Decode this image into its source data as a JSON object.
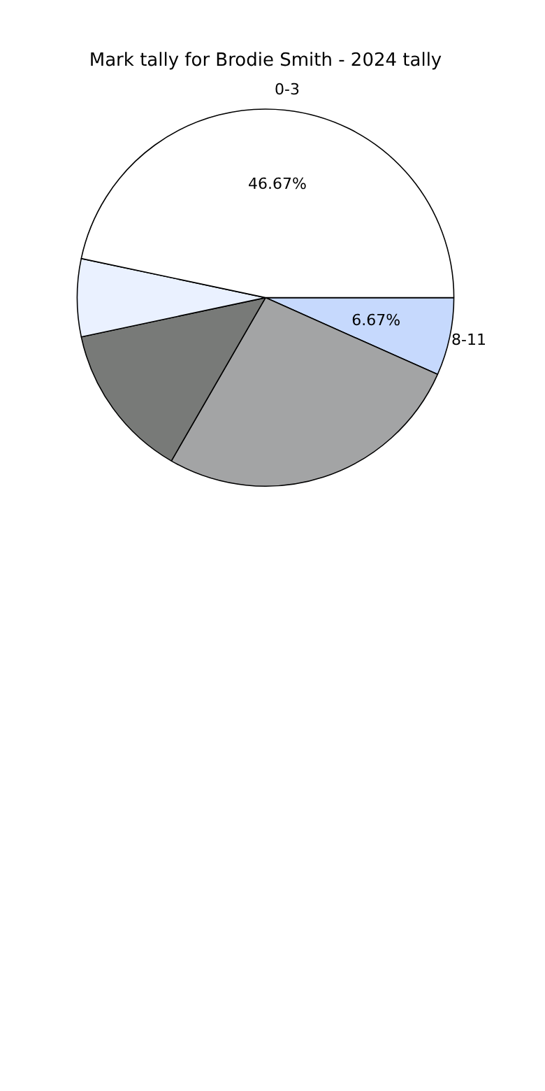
{
  "chart_data": {
    "type": "pie",
    "title": "Mark tally for Brodie Smith - 2024 tally",
    "categories": [
      "8-11",
      null,
      null,
      null,
      "0-3"
    ],
    "values": [
      6.67,
      26.66,
      13.33,
      6.67,
      46.67
    ],
    "colors": [
      "#c6d9fd",
      "#a3a4a5",
      "#787a78",
      "#eaf1ff",
      "#ffffff"
    ],
    "value_labels": [
      "6.67%",
      null,
      null,
      null,
      "46.67%"
    ],
    "legend": false
  }
}
